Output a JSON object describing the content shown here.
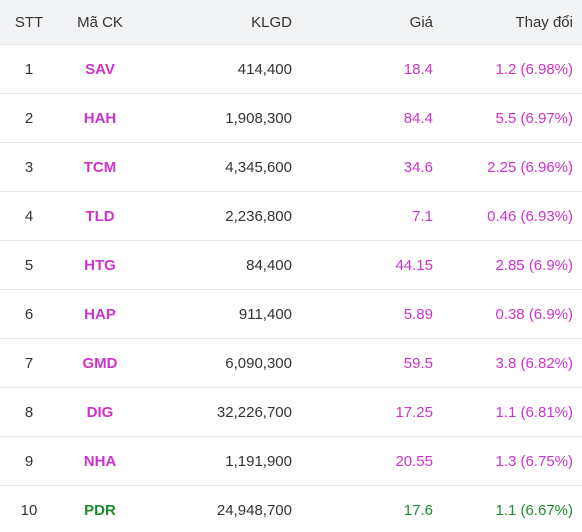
{
  "headers": {
    "stt": "STT",
    "symbol": "Mã CK",
    "volume": "KLGD",
    "price": "Giá",
    "change": "Thay đổi"
  },
  "colors": {
    "ceiling": "#cc33cc",
    "up": "#1e8a2e",
    "text": "#333333",
    "header_bg": "#f2f3f5"
  },
  "rows": [
    {
      "stt": "1",
      "symbol": "SAV",
      "volume": "414,400",
      "price": "18.4",
      "change": "1.2 (6.98%)",
      "status": "ceiling"
    },
    {
      "stt": "2",
      "symbol": "HAH",
      "volume": "1,908,300",
      "price": "84.4",
      "change": "5.5 (6.97%)",
      "status": "ceiling"
    },
    {
      "stt": "3",
      "symbol": "TCM",
      "volume": "4,345,600",
      "price": "34.6",
      "change": "2.25 (6.96%)",
      "status": "ceiling"
    },
    {
      "stt": "4",
      "symbol": "TLD",
      "volume": "2,236,800",
      "price": "7.1",
      "change": "0.46 (6.93%)",
      "status": "ceiling"
    },
    {
      "stt": "5",
      "symbol": "HTG",
      "volume": "84,400",
      "price": "44.15",
      "change": "2.85 (6.9%)",
      "status": "ceiling"
    },
    {
      "stt": "6",
      "symbol": "HAP",
      "volume": "911,400",
      "price": "5.89",
      "change": "0.38 (6.9%)",
      "status": "ceiling"
    },
    {
      "stt": "7",
      "symbol": "GMD",
      "volume": "6,090,300",
      "price": "59.5",
      "change": "3.8 (6.82%)",
      "status": "ceiling"
    },
    {
      "stt": "8",
      "symbol": "DIG",
      "volume": "32,226,700",
      "price": "17.25",
      "change": "1.1 (6.81%)",
      "status": "ceiling"
    },
    {
      "stt": "9",
      "symbol": "NHA",
      "volume": "1,191,900",
      "price": "20.55",
      "change": "1.3 (6.75%)",
      "status": "ceiling"
    },
    {
      "stt": "10",
      "symbol": "PDR",
      "volume": "24,948,700",
      "price": "17.6",
      "change": "1.1 (6.67%)",
      "status": "up"
    }
  ]
}
